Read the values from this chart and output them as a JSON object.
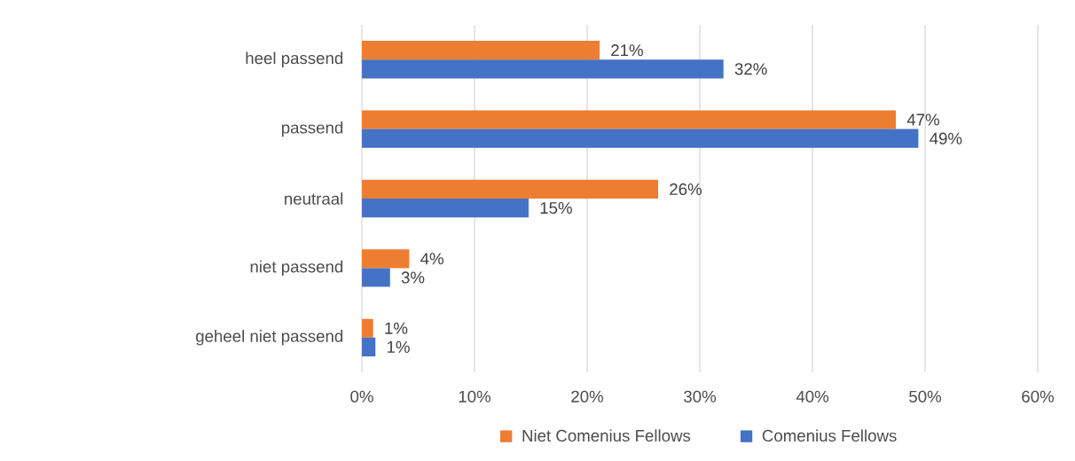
{
  "chart_data": {
    "type": "bar",
    "orientation": "horizontal",
    "categories": [
      "heel passend",
      "passend",
      "neutraal",
      "niet passend",
      "geheel niet passend"
    ],
    "series": [
      {
        "name": "Niet Comenius Fellows",
        "color": "#ed7d31",
        "values": [
          21.1,
          47.4,
          26.3,
          4.2,
          1.0
        ],
        "value_labels": [
          "21%",
          "47%",
          "26%",
          "4%",
          "1%"
        ]
      },
      {
        "name": "Comenius Fellows",
        "color": "#4472c4",
        "values": [
          32.1,
          49.4,
          14.8,
          2.5,
          1.2
        ],
        "value_labels": [
          "32%",
          "49%",
          "15%",
          "3%",
          "1%"
        ]
      }
    ],
    "xlim": [
      0,
      60
    ],
    "xticks": [
      {
        "value": 0,
        "label": "0%"
      },
      {
        "value": 10,
        "label": "10%"
      },
      {
        "value": 20,
        "label": "20%"
      },
      {
        "value": 30,
        "label": "30%"
      },
      {
        "value": 40,
        "label": "40%"
      },
      {
        "value": 50,
        "label": "50%"
      },
      {
        "value": 60,
        "label": "60%"
      }
    ],
    "grid": "x",
    "legend": "bottom"
  }
}
